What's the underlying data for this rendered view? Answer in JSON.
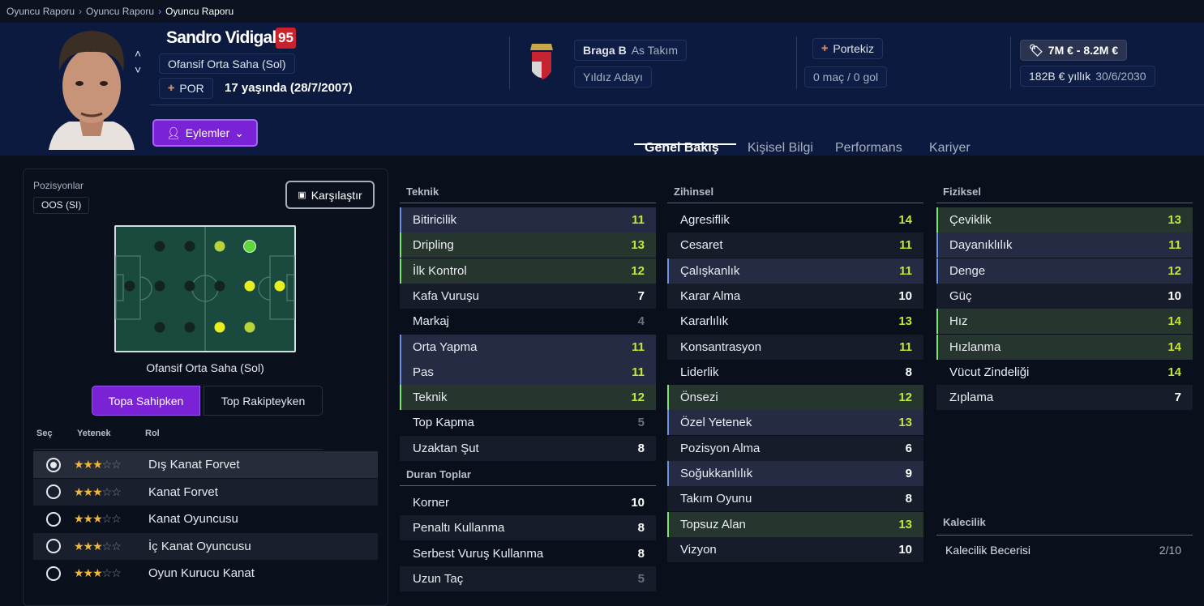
{
  "breadcrumb": [
    "Oyuncu Raporu",
    "Oyuncu Raporu",
    "Oyuncu Raporu"
  ],
  "player": {
    "name": "Sandro Vidigal",
    "rating": "95",
    "position": "Ofansif Orta Saha (Sol)",
    "nation_code": "POR",
    "age": "17 yaşında (28/7/2007)",
    "actions_label": "Eylemler"
  },
  "club": {
    "name": "Braga B",
    "squad": "As Takım",
    "status": "Yıldız Adayı"
  },
  "nation": {
    "name": "Portekiz",
    "caps": "0 maç / 0 gol"
  },
  "contract": {
    "value": "7M € - 8.2M €",
    "wage": "182B € yıllık",
    "expiry": "30/6/2030"
  },
  "tabs": [
    {
      "label": "Genel Bakış",
      "active": true
    },
    {
      "label": "Kişisel Bilgi"
    },
    {
      "label": "Performans"
    },
    {
      "label": "Kariyer"
    }
  ],
  "positions": {
    "title": "Pozisyonlar",
    "badge": "OOS (SI)",
    "compare_label": "Karşılaştır",
    "pitch_caption": "Ofansif Orta Saha (Sol)",
    "pitch_grid": [
      [
        "none",
        "poor",
        "poor",
        "good",
        "best",
        "none"
      ],
      [
        "poor",
        "poor",
        "poor",
        "poor",
        "great",
        "great"
      ],
      [
        "none",
        "poor",
        "poor",
        "great",
        "good",
        "none"
      ]
    ],
    "level_colors": {
      "poor": "#14302a",
      "good": "#b9d43a",
      "great": "#e8ef1e",
      "best": "#5bd83a"
    },
    "toggle": [
      "Topa Sahipken",
      "Top Rakipteyken"
    ],
    "role_headers": [
      "Seç",
      "Yetenek",
      "Rol"
    ],
    "roles": [
      {
        "name": "Dış Kanat Forvet",
        "stars": 2.5,
        "selected": true
      },
      {
        "name": "Kanat Forvet",
        "stars": 2.5
      },
      {
        "name": "Kanat Oyuncusu",
        "stars": 2.5
      },
      {
        "name": "İç Kanat Oyuncusu",
        "stars": 2.5
      },
      {
        "name": "Oyun Kurucu Kanat",
        "stars": 2.5
      }
    ]
  },
  "attributes": {
    "teknik": {
      "title": "Teknik",
      "items": [
        [
          "Bitiricilik",
          11,
          "blue"
        ],
        [
          "Dripling",
          13,
          "green"
        ],
        [
          "İlk Kontrol",
          12,
          "green"
        ],
        [
          "Kafa Vuruşu",
          7,
          ""
        ],
        [
          "Markaj",
          4,
          ""
        ],
        [
          "Orta Yapma",
          11,
          "blue"
        ],
        [
          "Pas",
          11,
          "blue"
        ],
        [
          "Teknik",
          12,
          "green"
        ],
        [
          "Top Kapma",
          5,
          ""
        ],
        [
          "Uzaktan Şut",
          8,
          ""
        ]
      ]
    },
    "duran": {
      "title": "Duran Toplar",
      "items": [
        [
          "Korner",
          10,
          ""
        ],
        [
          "Penaltı Kullanma",
          8,
          ""
        ],
        [
          "Serbest Vuruş Kullanma",
          8,
          ""
        ],
        [
          "Uzun Taç",
          5,
          ""
        ]
      ]
    },
    "zihinsel": {
      "title": "Zihinsel",
      "items": [
        [
          "Agresiflik",
          14,
          ""
        ],
        [
          "Cesaret",
          11,
          ""
        ],
        [
          "Çalışkanlık",
          11,
          "blue"
        ],
        [
          "Karar Alma",
          10,
          ""
        ],
        [
          "Kararlılık",
          13,
          ""
        ],
        [
          "Konsantrasyon",
          11,
          ""
        ],
        [
          "Liderlik",
          8,
          ""
        ],
        [
          "Önsezi",
          12,
          "green"
        ],
        [
          "Özel Yetenek",
          13,
          "blue"
        ],
        [
          "Pozisyon Alma",
          6,
          ""
        ],
        [
          "Soğukkanlılık",
          9,
          "blue"
        ],
        [
          "Takım Oyunu",
          8,
          ""
        ],
        [
          "Topsuz Alan",
          13,
          "green"
        ],
        [
          "Vizyon",
          10,
          ""
        ]
      ]
    },
    "fiziksel": {
      "title": "Fiziksel",
      "items": [
        [
          "Çeviklik",
          13,
          "green"
        ],
        [
          "Dayanıklılık",
          11,
          "blue"
        ],
        [
          "Denge",
          12,
          "blue"
        ],
        [
          "Güç",
          10,
          ""
        ],
        [
          "Hız",
          14,
          "green"
        ],
        [
          "Hızlanma",
          14,
          "green"
        ],
        [
          "Vücut Zindeliği",
          14,
          ""
        ],
        [
          "Zıplama",
          7,
          ""
        ]
      ]
    },
    "kalecilik": {
      "title": "Kalecilik",
      "label": "Kalecilik Becerisi",
      "value": "2/10"
    }
  },
  "colors": {
    "accent": "#7a22d6",
    "rating_badge": "#c8232c",
    "high_value": "#c5e63a"
  }
}
